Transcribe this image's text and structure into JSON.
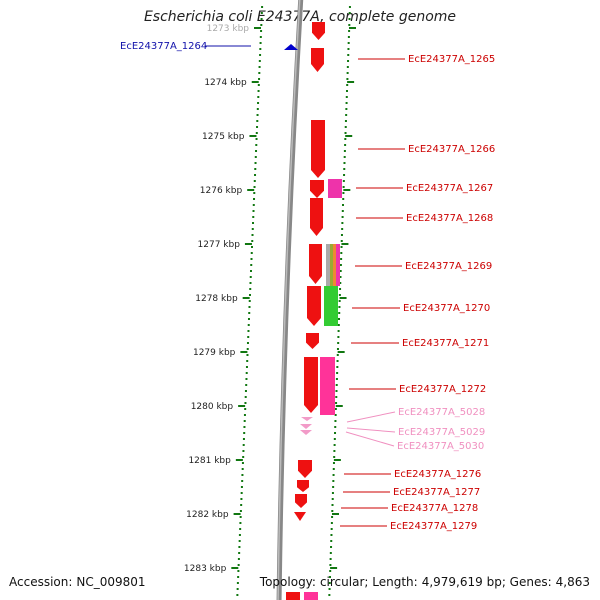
{
  "title": "Escherichia coli E24377A, complete genome",
  "footer": {
    "accession_label": "Accession:",
    "accession": "NC_009801",
    "topology_label": "Topology:",
    "topology": "circular",
    "length_label": "Length:",
    "length": "4,979,619 bp",
    "genes_label": "Genes:",
    "genes": "4,863"
  },
  "scale_ticks": [
    "1273 kbp",
    "1274 kbp",
    "1275 kbp",
    "1276 kbp",
    "1277 kbp",
    "1278 kbp",
    "1279 kbp",
    "1280 kbp",
    "1281 kbp",
    "1282 kbp",
    "1283 kbp"
  ],
  "colors": {
    "gene": "#ee1111",
    "pink_gene": "#ff3399",
    "magenta_gene": "#ee33aa",
    "green_gene": "#33cc33",
    "light_pink_gene": "#f29bc8",
    "highlight_label": "#1111aa",
    "label": "#cc0000",
    "light_label": "#f090c0",
    "axis_tick": "#117711",
    "backbone": "#999999"
  },
  "gene_labels": [
    {
      "text": "EcE24377A_1264",
      "side": "left",
      "style": "highlight"
    },
    {
      "text": "EcE24377A_1265",
      "side": "right",
      "style": "normal"
    },
    {
      "text": "EcE24377A_1266",
      "side": "right",
      "style": "normal"
    },
    {
      "text": "EcE24377A_1267",
      "side": "right",
      "style": "normal"
    },
    {
      "text": "EcE24377A_1268",
      "side": "right",
      "style": "normal"
    },
    {
      "text": "EcE24377A_1269",
      "side": "right",
      "style": "normal"
    },
    {
      "text": "EcE24377A_1270",
      "side": "right",
      "style": "normal"
    },
    {
      "text": "EcE24377A_1271",
      "side": "right",
      "style": "normal"
    },
    {
      "text": "EcE24377A_1272",
      "side": "right",
      "style": "normal"
    },
    {
      "text": "EcE24377A_5028",
      "side": "right",
      "style": "light"
    },
    {
      "text": "EcE24377A_5029",
      "side": "right",
      "style": "light"
    },
    {
      "text": "EcE24377A_5030",
      "side": "right",
      "style": "light"
    },
    {
      "text": "EcE24377A_1276",
      "side": "right",
      "style": "normal"
    },
    {
      "text": "EcE24377A_1277",
      "side": "right",
      "style": "normal"
    },
    {
      "text": "EcE24377A_1278",
      "side": "right",
      "style": "normal"
    },
    {
      "text": "EcE24377A_1279",
      "side": "right",
      "style": "normal"
    }
  ]
}
